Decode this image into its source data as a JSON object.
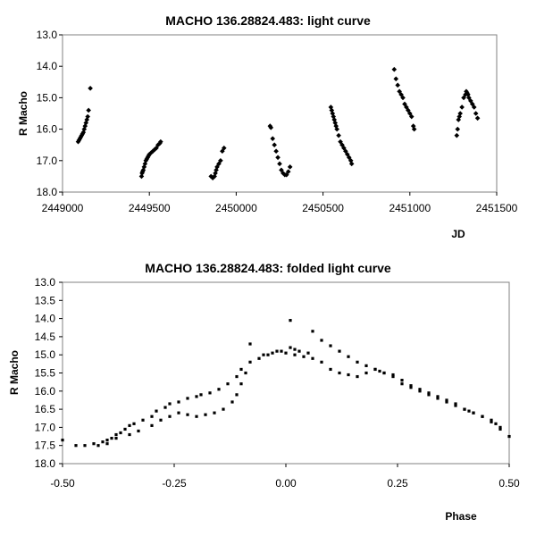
{
  "chart_data": [
    {
      "type": "scatter",
      "title": "MACHO 136.28824.483: light curve",
      "xlabel": "JD",
      "ylabel": "R Macho",
      "xlim": [
        2449000,
        2451500
      ],
      "ylim": [
        13.0,
        18.0
      ],
      "y_inverted": true,
      "xticks": [
        "2449000",
        "2449500",
        "2450000",
        "2450500",
        "2451000",
        "2451500"
      ],
      "yticks": [
        "13.0",
        "14.0",
        "15.0",
        "16.0",
        "17.0",
        "18.0"
      ],
      "grid": false,
      "legend": "none",
      "marker_color": "#000000",
      "series": [
        {
          "x": [
            2449090,
            2449095,
            2449100,
            2449105,
            2449110,
            2449115,
            2449120,
            2449125,
            2449130,
            2449135,
            2449140,
            2449145,
            2449150,
            2449160,
            2449455,
            2449458,
            2449461,
            2449465,
            2449470,
            2449475,
            2449480,
            2449485,
            2449490,
            2449495,
            2449500,
            2449510,
            2449520,
            2449530,
            2449540,
            2449550,
            2449560,
            2449565,
            2449855,
            2449865,
            2449875,
            2449880,
            2449885,
            2449890,
            2449900,
            2449910,
            2449920,
            2449930,
            2450195,
            2450200,
            2450210,
            2450220,
            2450230,
            2450240,
            2450250,
            2450260,
            2450270,
            2450280,
            2450290,
            2450300,
            2450310,
            2450545,
            2450550,
            2450555,
            2450560,
            2450565,
            2450570,
            2450575,
            2450580,
            2450590,
            2450600,
            2450610,
            2450620,
            2450630,
            2450640,
            2450650,
            2450660,
            2450665,
            2450910,
            2450920,
            2450930,
            2450940,
            2450950,
            2450960,
            2450970,
            2450980,
            2450990,
            2451000,
            2451010,
            2451020,
            2451025,
            2451270,
            2451275,
            2451280,
            2451285,
            2451290,
            2451300,
            2451310,
            2451320,
            2451325,
            2451330,
            2451335,
            2451340,
            2451350,
            2451360,
            2451370,
            2451380,
            2451390
          ],
          "y": [
            16.4,
            16.35,
            16.3,
            16.25,
            16.2,
            16.15,
            16.1,
            16.0,
            15.9,
            15.8,
            15.7,
            15.6,
            15.4,
            14.7,
            17.5,
            17.4,
            17.35,
            17.3,
            17.2,
            17.1,
            17.0,
            16.95,
            16.9,
            16.85,
            16.8,
            16.75,
            16.7,
            16.65,
            16.6,
            16.5,
            16.45,
            16.4,
            17.5,
            17.55,
            17.5,
            17.4,
            17.3,
            17.2,
            17.1,
            17.0,
            16.7,
            16.6,
            15.9,
            15.95,
            16.3,
            16.5,
            16.7,
            16.9,
            17.1,
            17.3,
            17.4,
            17.45,
            17.45,
            17.35,
            17.2,
            15.3,
            15.4,
            15.5,
            15.6,
            15.7,
            15.8,
            15.9,
            16.0,
            16.2,
            16.4,
            16.5,
            16.6,
            16.7,
            16.8,
            16.9,
            17.0,
            17.1,
            14.1,
            14.4,
            14.6,
            14.8,
            14.9,
            15.0,
            15.2,
            15.3,
            15.4,
            15.5,
            15.6,
            15.9,
            16.0,
            16.2,
            16.0,
            15.7,
            15.6,
            15.5,
            15.3,
            15.0,
            14.9,
            14.8,
            14.85,
            14.9,
            15.0,
            15.1,
            15.2,
            15.3,
            15.5,
            15.65
          ]
        }
      ]
    },
    {
      "type": "scatter",
      "title": "MACHO 136.28824.483: folded light curve",
      "xlabel": "Phase",
      "ylabel": "R Macho",
      "xlim": [
        -0.5,
        0.5
      ],
      "ylim": [
        13.0,
        18.0
      ],
      "y_inverted": true,
      "xticks": [
        "-0.50",
        "-0.25",
        "0.00",
        "0.25",
        "0.50"
      ],
      "yticks": [
        "13.0",
        "13.5",
        "14.0",
        "14.5",
        "15.0",
        "15.5",
        "16.0",
        "16.5",
        "17.0",
        "17.5",
        "18.0"
      ],
      "grid": false,
      "legend": "none",
      "marker_color": "#000000",
      "series": [
        {
          "x": [
            -0.5,
            -0.47,
            -0.45,
            -0.43,
            -0.41,
            -0.4,
            -0.39,
            -0.38,
            -0.37,
            -0.36,
            -0.35,
            -0.34,
            -0.32,
            -0.3,
            -0.29,
            -0.27,
            -0.26,
            -0.24,
            -0.22,
            -0.2,
            -0.19,
            -0.17,
            -0.15,
            -0.13,
            -0.11,
            -0.1,
            -0.08,
            -0.05,
            -0.03,
            -0.01,
            0.0,
            0.01,
            0.01,
            0.02,
            0.03,
            0.05,
            0.06,
            0.08,
            0.1,
            0.12,
            0.14,
            0.16,
            0.18,
            0.2,
            0.22,
            0.24,
            0.26,
            0.28,
            0.3,
            0.32,
            0.34,
            0.36,
            0.38,
            0.4,
            0.41,
            0.42,
            0.44,
            0.46,
            0.47,
            0.48,
            0.5,
            -0.42,
            -0.4,
            -0.38,
            -0.35,
            -0.33,
            -0.3,
            -0.28,
            -0.26,
            -0.24,
            -0.22,
            -0.2,
            -0.18,
            -0.16,
            -0.14,
            -0.12,
            -0.11,
            -0.1,
            -0.09,
            -0.08,
            -0.06,
            -0.04,
            -0.02,
            0.02,
            0.04,
            0.06,
            0.08,
            0.1,
            0.12,
            0.14,
            0.16,
            0.18,
            0.2,
            0.21,
            0.22,
            0.24,
            0.26,
            0.28,
            0.3,
            0.32,
            0.34,
            0.36,
            0.38,
            0.4,
            0.42,
            0.44,
            0.46,
            0.48
          ],
          "y": [
            17.35,
            17.5,
            17.5,
            17.45,
            17.4,
            17.35,
            17.3,
            17.2,
            17.15,
            17.05,
            16.95,
            16.9,
            16.8,
            16.7,
            16.55,
            16.45,
            16.35,
            16.3,
            16.2,
            16.15,
            16.1,
            16.05,
            15.95,
            15.8,
            15.6,
            15.4,
            14.7,
            15.0,
            14.95,
            14.9,
            14.95,
            14.05,
            14.8,
            14.85,
            14.9,
            14.95,
            14.35,
            14.6,
            14.75,
            14.9,
            15.05,
            15.2,
            15.3,
            15.4,
            15.5,
            15.6,
            15.8,
            15.9,
            16.0,
            16.1,
            16.2,
            16.3,
            16.4,
            16.5,
            16.55,
            16.6,
            16.7,
            16.8,
            16.9,
            17.05,
            17.25,
            17.5,
            17.45,
            17.3,
            17.2,
            17.1,
            16.95,
            16.8,
            16.7,
            16.6,
            16.65,
            16.7,
            16.65,
            16.6,
            16.5,
            16.3,
            16.1,
            15.8,
            15.5,
            15.2,
            15.1,
            15.0,
            14.9,
            15.0,
            15.05,
            15.1,
            15.2,
            15.4,
            15.5,
            15.55,
            15.6,
            15.5,
            15.4,
            15.45,
            15.5,
            15.55,
            15.7,
            15.85,
            15.95,
            16.05,
            16.15,
            16.25,
            16.35,
            16.5,
            16.6,
            16.7,
            16.85,
            17.0
          ]
        }
      ]
    }
  ]
}
